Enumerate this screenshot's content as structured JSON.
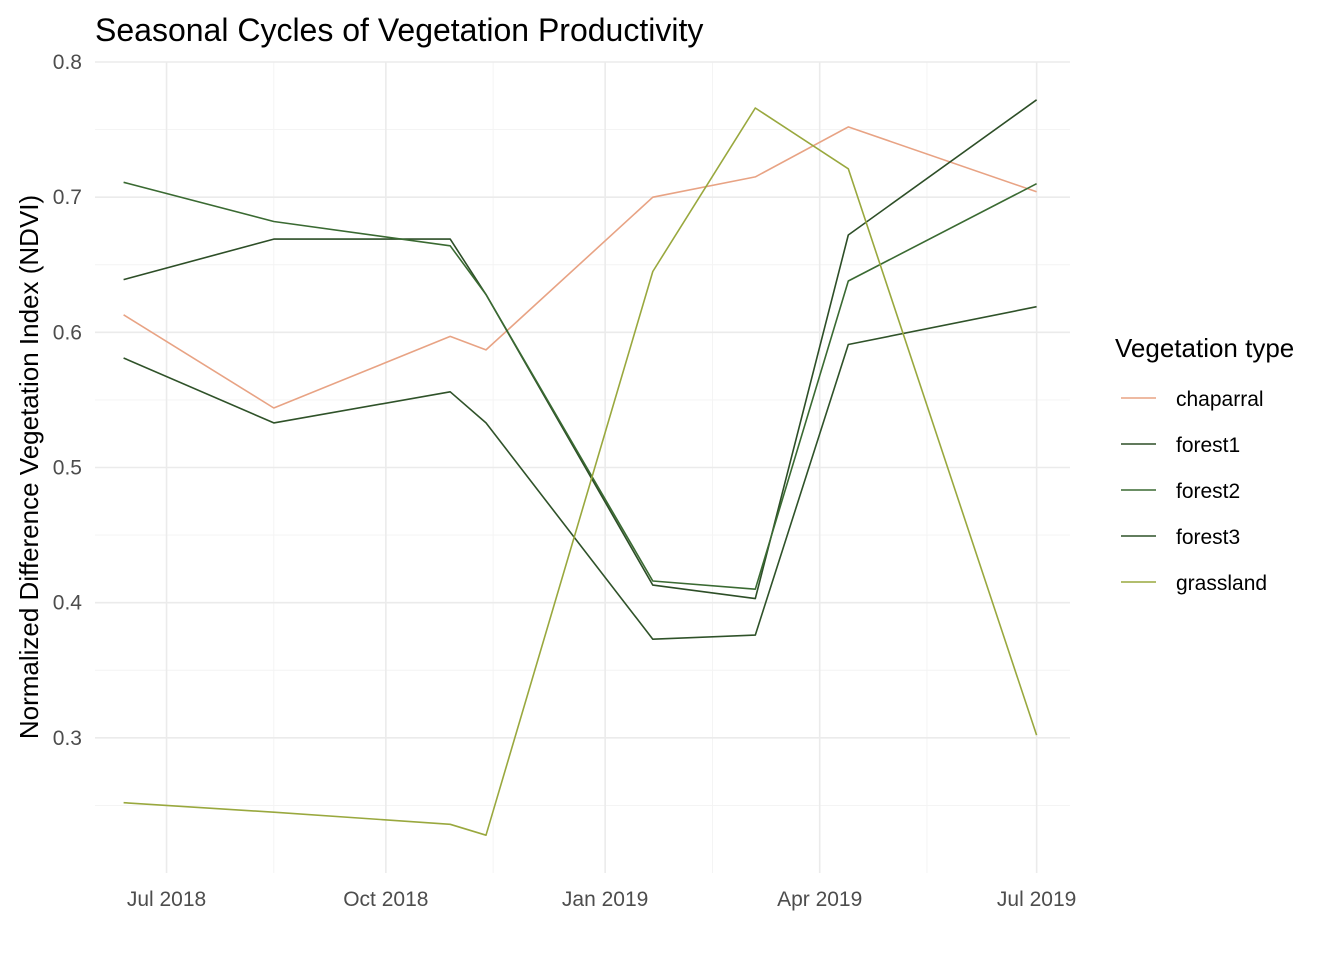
{
  "chart_data": {
    "type": "line",
    "title": "Seasonal Cycles of Vegetation Productivity",
    "xlabel": "",
    "ylabel": "Normalized Difference Vegetation Index (NDVI)",
    "ylim": [
      0.2,
      0.8
    ],
    "xlim": [
      "2018-06-01",
      "2019-07-15"
    ],
    "grid": true,
    "legend_title": "Vegetation type",
    "legend_position": "right",
    "x_ticks": [
      {
        "date": "2018-07-01",
        "label": "Jul 2018"
      },
      {
        "date": "2018-10-01",
        "label": "Oct 2018"
      },
      {
        "date": "2019-01-01",
        "label": "Jan 2019"
      },
      {
        "date": "2019-04-01",
        "label": "Apr 2019"
      },
      {
        "date": "2019-07-01",
        "label": "Jul 2019"
      }
    ],
    "x_minor_ticks": [
      "2018-08-15",
      "2018-11-15",
      "2019-02-15",
      "2019-05-16"
    ],
    "y_ticks": [
      0.3,
      0.4,
      0.5,
      0.6,
      0.7,
      0.8
    ],
    "y_tick_labels": [
      "0.3",
      "0.4",
      "0.5",
      "0.6",
      "0.7",
      "0.8"
    ],
    "y_minor_ticks": [
      0.25,
      0.35,
      0.45,
      0.55,
      0.65,
      0.75
    ],
    "x": [
      "2018-06-13",
      "2018-08-15",
      "2018-10-28",
      "2018-11-12",
      "2019-01-21",
      "2019-03-05",
      "2019-04-13",
      "2019-07-01"
    ],
    "series": [
      {
        "name": "chaparral",
        "color": "#E8A384",
        "values": [
          0.613,
          0.544,
          0.597,
          0.587,
          0.7,
          0.715,
          0.752,
          0.704
        ]
      },
      {
        "name": "forest1",
        "color": "#2D4E27",
        "values": [
          0.639,
          0.669,
          0.669,
          0.628,
          0.413,
          0.403,
          0.672,
          0.772
        ]
      },
      {
        "name": "forest2",
        "color": "#3A6A32",
        "values": [
          0.711,
          0.682,
          0.664,
          0.628,
          0.416,
          0.41,
          0.638,
          0.71
        ]
      },
      {
        "name": "forest3",
        "color": "#2F5229",
        "values": [
          0.581,
          0.533,
          0.556,
          0.533,
          0.373,
          0.376,
          0.591,
          0.619
        ]
      },
      {
        "name": "grassland",
        "color": "#99A83E",
        "values": [
          0.252,
          0.245,
          0.236,
          0.228,
          0.645,
          0.766,
          0.721,
          0.302
        ]
      }
    ]
  }
}
